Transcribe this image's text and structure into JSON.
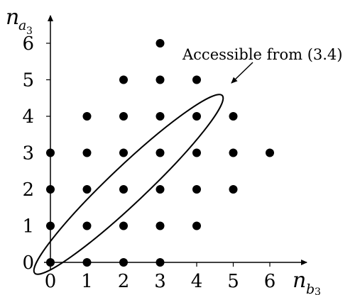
{
  "chart_data": {
    "type": "scatter",
    "title": "",
    "xlabel": {
      "base": "n",
      "sub": "b",
      "subsub": "3"
    },
    "ylabel": {
      "base": "n",
      "sub": "a",
      "subsub": "3"
    },
    "xlim": [
      0,
      6
    ],
    "ylim": [
      0,
      6
    ],
    "xticks": [
      "0",
      "1",
      "2",
      "3",
      "4",
      "5",
      "6"
    ],
    "yticks": [
      "0",
      "1",
      "2",
      "3",
      "4",
      "5",
      "6"
    ],
    "grid": false,
    "points": [
      [
        0,
        0
      ],
      [
        1,
        0
      ],
      [
        2,
        0
      ],
      [
        3,
        0
      ],
      [
        0,
        1
      ],
      [
        1,
        1
      ],
      [
        2,
        1
      ],
      [
        3,
        1
      ],
      [
        4,
        1
      ],
      [
        0,
        2
      ],
      [
        1,
        2
      ],
      [
        2,
        2
      ],
      [
        3,
        2
      ],
      [
        4,
        2
      ],
      [
        5,
        2
      ],
      [
        0,
        3
      ],
      [
        1,
        3
      ],
      [
        2,
        3
      ],
      [
        3,
        3
      ],
      [
        4,
        3
      ],
      [
        5,
        3
      ],
      [
        6,
        3
      ],
      [
        1,
        4
      ],
      [
        2,
        4
      ],
      [
        3,
        4
      ],
      [
        4,
        4
      ],
      [
        5,
        4
      ],
      [
        2,
        5
      ],
      [
        3,
        5
      ],
      [
        4,
        5
      ],
      [
        3,
        6
      ]
    ],
    "annotation": {
      "text": "Accessible from (3.4)",
      "region": "ellipse enclosing diagonal points (0,0) through (4,4)"
    }
  }
}
